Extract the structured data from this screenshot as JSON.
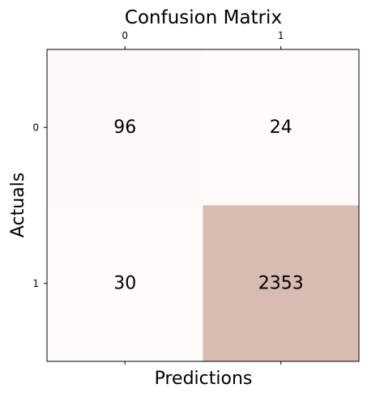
{
  "chart_data": {
    "type": "heatmap",
    "title": "Confusion Matrix",
    "xlabel": "Predictions",
    "ylabel": "Actuals",
    "x_categories": [
      "0",
      "1"
    ],
    "y_categories": [
      "0",
      "1"
    ],
    "values": [
      [
        96,
        24
      ],
      [
        30,
        2353
      ]
    ],
    "colormap": {
      "low": "#fffbf9",
      "high": "#d8bcb2"
    },
    "x_ticks_position": "top-and-bottom",
    "grid": false
  }
}
